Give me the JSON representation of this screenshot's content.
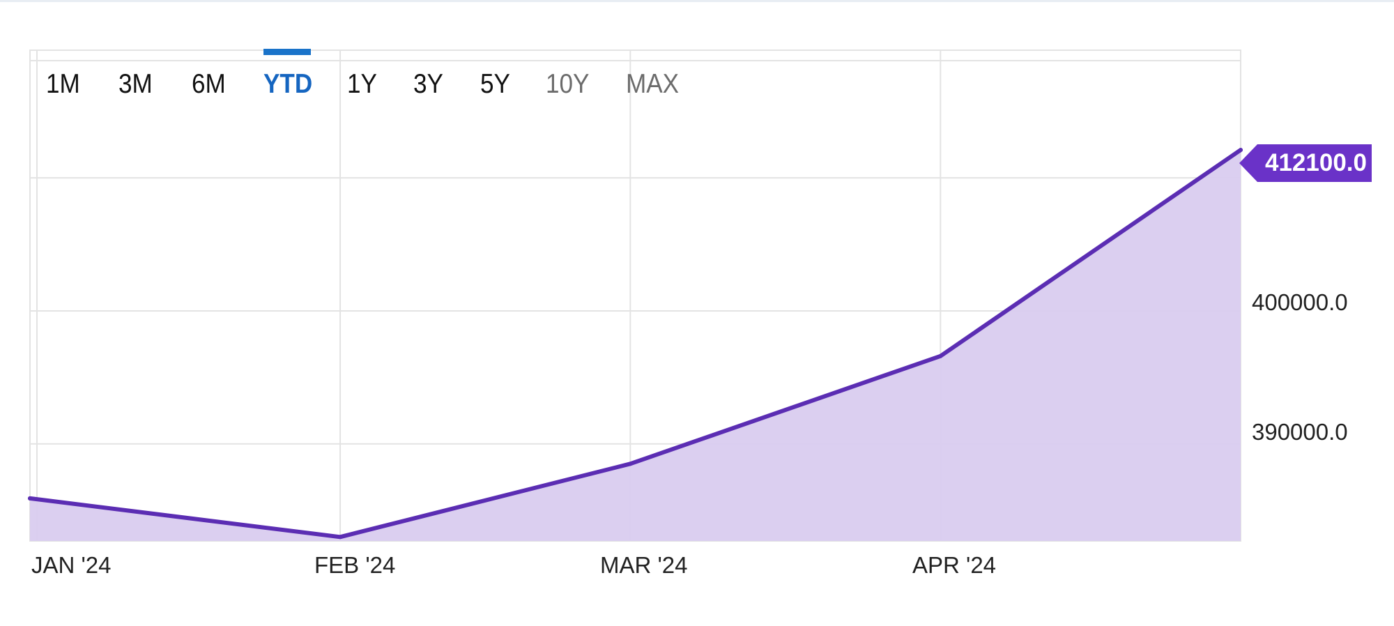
{
  "range_selector": {
    "buttons": [
      {
        "label": "1M",
        "state": "normal"
      },
      {
        "label": "3M",
        "state": "normal"
      },
      {
        "label": "6M",
        "state": "normal"
      },
      {
        "label": "YTD",
        "state": "active"
      },
      {
        "label": "1Y",
        "state": "normal"
      },
      {
        "label": "3Y",
        "state": "normal"
      },
      {
        "label": "5Y",
        "state": "normal"
      },
      {
        "label": "10Y",
        "state": "disabled"
      },
      {
        "label": "MAX",
        "state": "disabled"
      }
    ]
  },
  "chart_data": {
    "type": "area",
    "x": [
      "2024-01-01",
      "2024-02-01",
      "2024-03-01",
      "2024-04-01",
      "2024-05-01"
    ],
    "values": [
      385900,
      383000,
      388500,
      396600,
      412100
    ],
    "x_tick_labels": [
      "JAN '24",
      "FEB '24",
      "MAR '24",
      "APR '24"
    ],
    "y_ticks": [
      390000,
      400000,
      410000
    ],
    "y_tick_labels": [
      "390000.0",
      "400000.0"
    ],
    "ylim": [
      382700,
      419600
    ],
    "last_value_label": "412100.0",
    "grid": true,
    "y_axis_side": "right",
    "colors": {
      "line": "#5b2db3",
      "fill": "#d9ccef",
      "tag": "#6a32c8",
      "grid": "#e3e3e3",
      "active_tab": "#1565c0"
    }
  }
}
